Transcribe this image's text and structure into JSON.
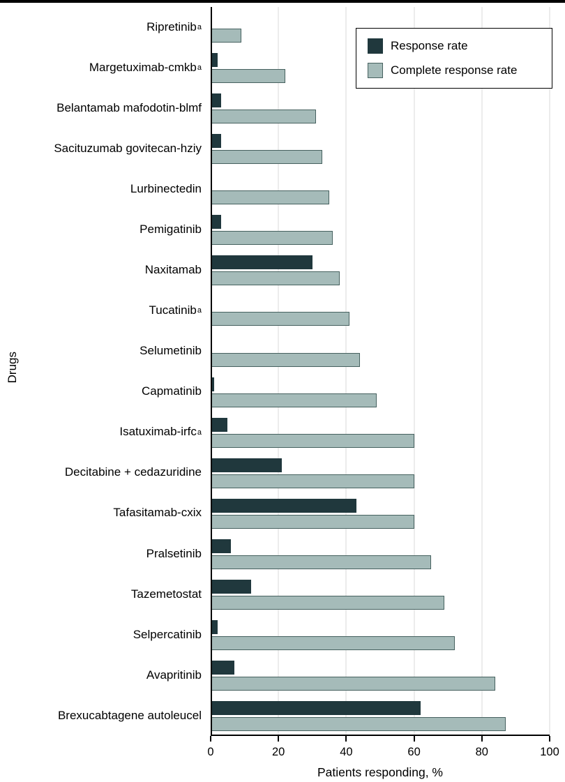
{
  "chart_data": {
    "type": "bar",
    "orientation": "horizontal",
    "title": "",
    "xlabel": "Patients responding, %",
    "ylabel": "Drugs",
    "xlim": [
      0,
      100
    ],
    "xticks": [
      0,
      20,
      40,
      60,
      80,
      100
    ],
    "grid": true,
    "legend_position": "top-right",
    "colors": {
      "series_dark": "#20383d",
      "series_light": "#a5bbb9",
      "series_light_border": "#46615f",
      "grid": "#d8d8d8",
      "axis": "#000000"
    },
    "legend": [
      {
        "name": "Response rate",
        "color": "#20383d"
      },
      {
        "name": "Complete response rate",
        "color": "#a5bbb9"
      }
    ],
    "categories": [
      {
        "label": "Ripretinib",
        "sup": "a"
      },
      {
        "label": "Margetuximab-cmkb",
        "sup": "a"
      },
      {
        "label": "Belantamab mafodotin-blmf",
        "sup": ""
      },
      {
        "label": "Sacituzumab govitecan-hziy",
        "sup": ""
      },
      {
        "label": "Lurbinectedin",
        "sup": ""
      },
      {
        "label": "Pemigatinib",
        "sup": ""
      },
      {
        "label": "Naxitamab",
        "sup": ""
      },
      {
        "label": "Tucatinib",
        "sup": "a"
      },
      {
        "label": "Selumetinib",
        "sup": ""
      },
      {
        "label": "Capmatinib",
        "sup": ""
      },
      {
        "label": "Isatuximab-irfc",
        "sup": "a"
      },
      {
        "label": "Decitabine + cedazuridine",
        "sup": ""
      },
      {
        "label": "Tafasitamab-cxix",
        "sup": ""
      },
      {
        "label": "Pralsetinib",
        "sup": ""
      },
      {
        "label": "Tazemetostat",
        "sup": ""
      },
      {
        "label": "Selpercatinib",
        "sup": ""
      },
      {
        "label": "Avapritinib",
        "sup": ""
      },
      {
        "label": "Brexucabtagene autoleucel",
        "sup": ""
      }
    ],
    "series": [
      {
        "name": "Response rate",
        "values": [
          0,
          2,
          3,
          3,
          0,
          3,
          30,
          0,
          0,
          1,
          5,
          21,
          43,
          6,
          12,
          2,
          7,
          62
        ]
      },
      {
        "name": "Complete response rate",
        "values": [
          9,
          22,
          31,
          33,
          35,
          36,
          38,
          41,
          44,
          49,
          60,
          60,
          60,
          65,
          69,
          72,
          84,
          87
        ]
      }
    ]
  }
}
